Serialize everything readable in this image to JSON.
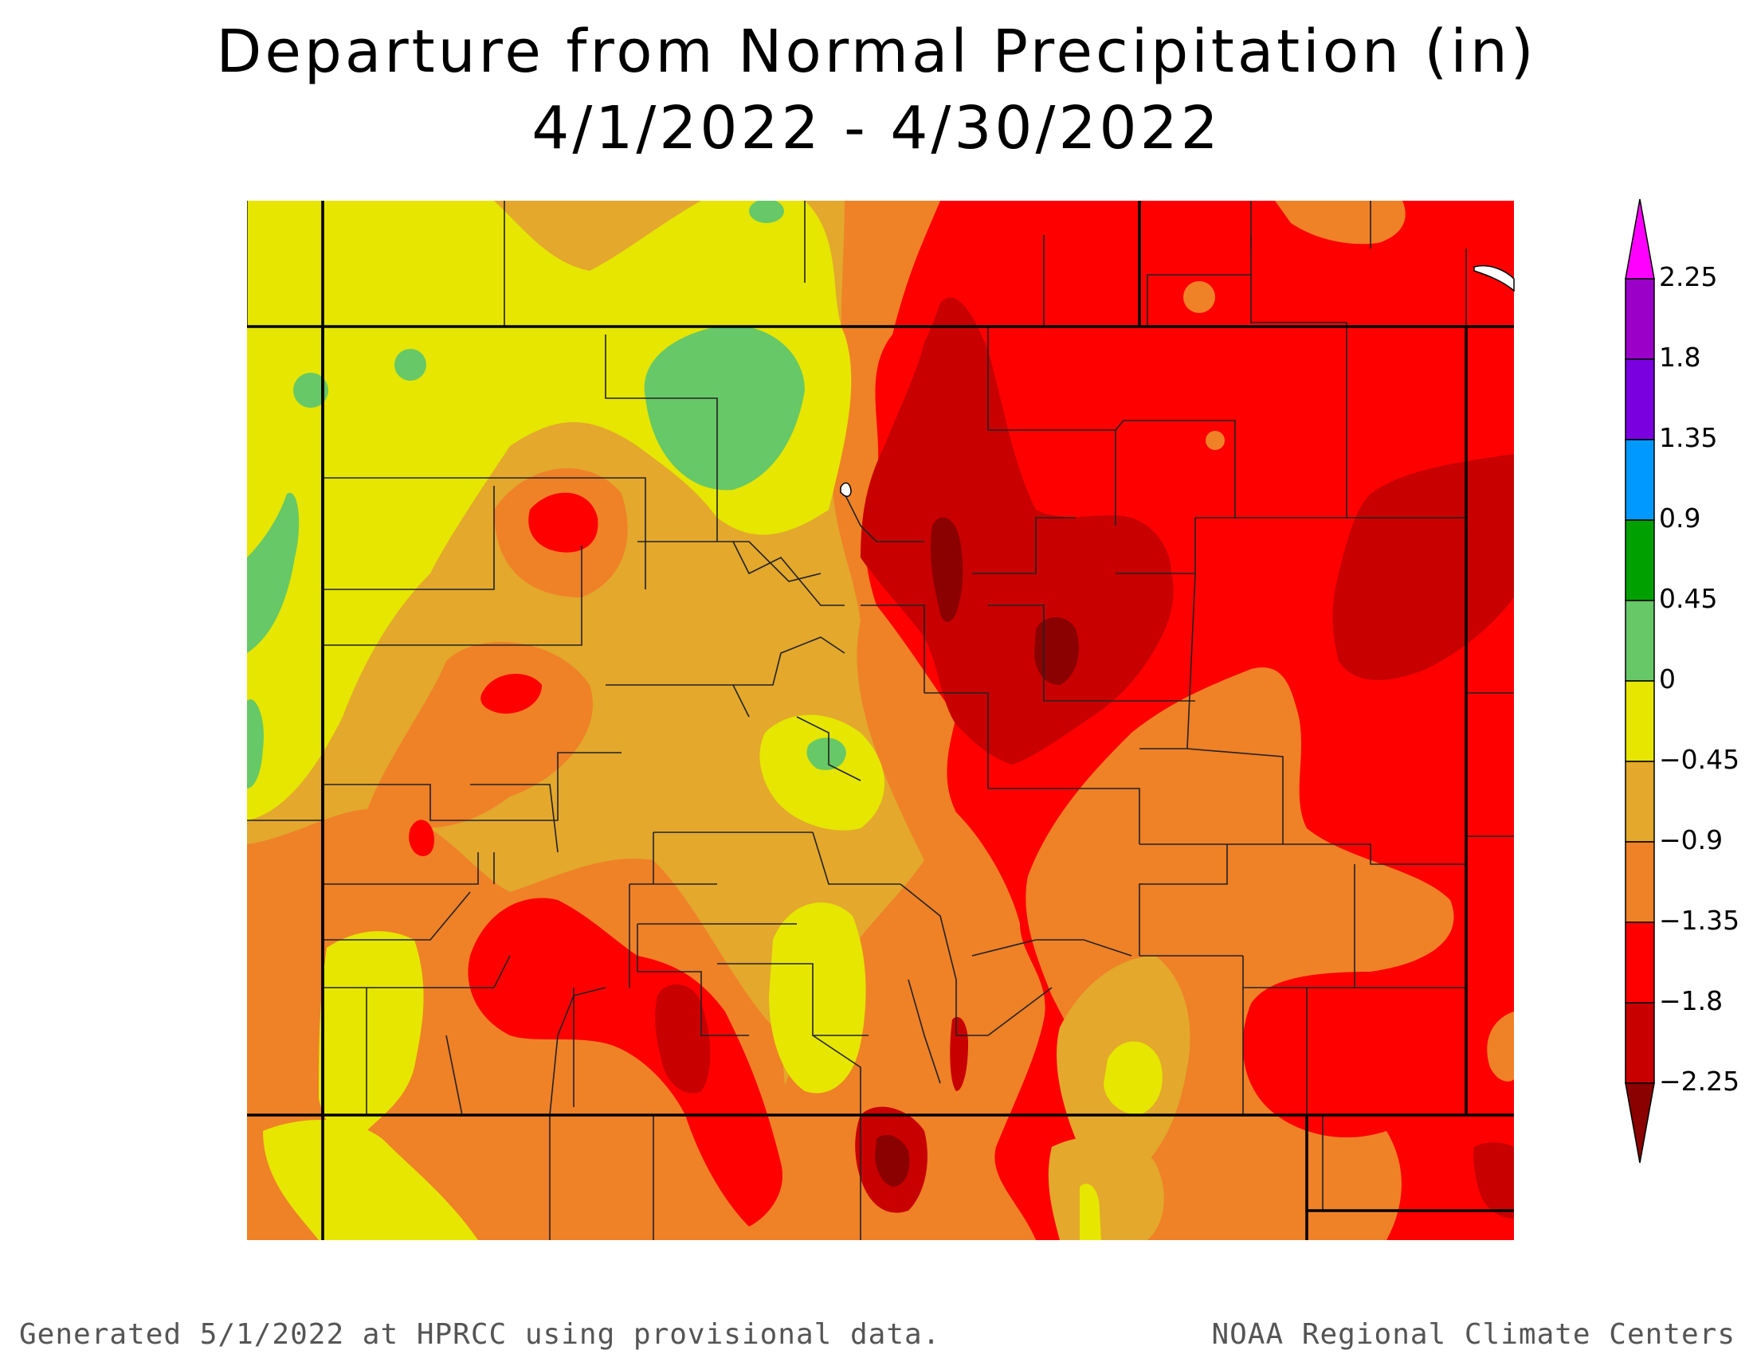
{
  "title": {
    "line1": "Departure from Normal Precipitation (in)",
    "line2": "4/1/2022 - 4/30/2022"
  },
  "legend": {
    "bins": [
      {
        "label": "2.25",
        "color": "#ff00ff"
      },
      {
        "label": "1.8",
        "color": "#9a00c8"
      },
      {
        "label": "1.35",
        "color": "#7a00e0"
      },
      {
        "label": "0.9",
        "color": "#0099ff"
      },
      {
        "label": "0.45",
        "color": "#00a000"
      },
      {
        "label": "0",
        "color": "#66c866"
      },
      {
        "label": "−0.45",
        "color": "#e6e600"
      },
      {
        "label": "−0.9",
        "color": "#e3a82c"
      },
      {
        "label": "−1.35",
        "color": "#ef8127"
      },
      {
        "label": "−1.8",
        "color": "#ff0000"
      },
      {
        "label": "−2.25",
        "color": "#c80000"
      }
    ],
    "low_arrow_color": "#8b0000",
    "high_arrow_color": "#ff00ff"
  },
  "colors": {
    "above_normal_light": "#66c866",
    "near_normal": "#e6e600",
    "dry_1": "#e3a82c",
    "dry_2": "#ef8127",
    "dry_3": "#ff0000",
    "dry_4": "#c80000",
    "dry_5": "#8b0000"
  },
  "footer": {
    "left": "Generated 5/1/2022 at HPRCC using provisional data.",
    "right": "NOAA Regional Climate Centers"
  }
}
